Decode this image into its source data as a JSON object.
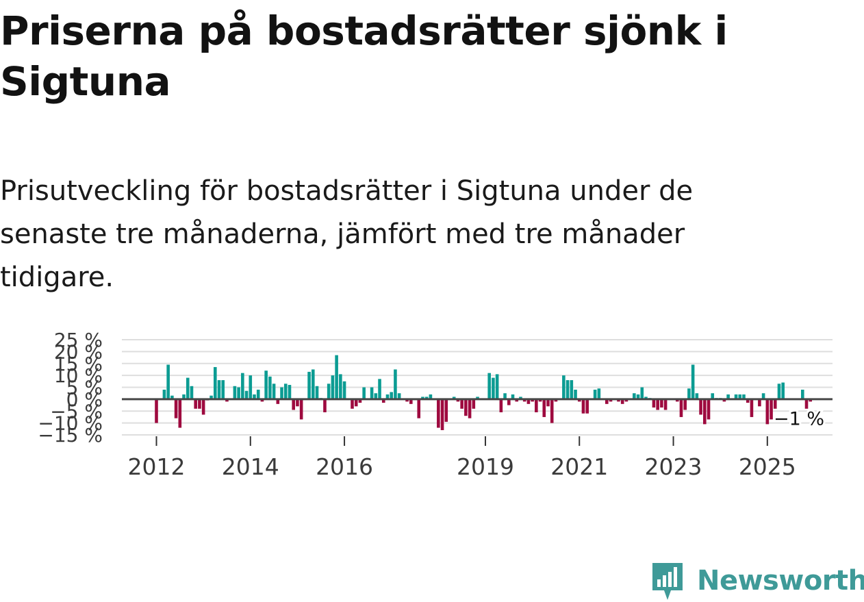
{
  "title": "Priserna på bostadsrätter sjönk i Sigtuna",
  "subtitle": "Prisutveckling för bostadsrätter i Sigtuna under de senaste tre månaderna, jämfört med tre månader tidigare.",
  "logo_text": "Newsworthy",
  "colors": {
    "positive": "#0c9c93",
    "negative": "#9e0a3f",
    "zero_line": "#474747",
    "grid": "#dedede",
    "tick_text": "#3a3a3a"
  },
  "chart_data": {
    "type": "bar",
    "title": "",
    "xlabel": "",
    "ylabel": "",
    "ylim": [
      -15,
      25
    ],
    "yticks": [
      25,
      20,
      15,
      10,
      5,
      0,
      -5,
      -10,
      -15
    ],
    "ytick_labels": [
      "25 %",
      "20 %",
      "15 %",
      "10 %",
      "5 %",
      "0 %",
      "−5 %",
      "−10 %",
      "−15 %"
    ],
    "xticks": [
      {
        "label": "2012",
        "index": 0
      },
      {
        "label": "2014",
        "index": 24
      },
      {
        "label": "2016",
        "index": 48
      },
      {
        "label": "2019",
        "index": 84
      },
      {
        "label": "2021",
        "index": 108
      },
      {
        "label": "2023",
        "index": 132
      },
      {
        "label": "2025",
        "index": 156
      }
    ],
    "last_value_label": "−1 %",
    "series": [
      {
        "name": "Prisutveckling",
        "values": [
          -10,
          0,
          4,
          14.5,
          1.5,
          -8,
          -12,
          2,
          9,
          5.5,
          -4,
          -4,
          -6.5,
          -0.5,
          1.5,
          13.5,
          8,
          8,
          -1,
          0,
          5.5,
          5,
          11,
          3.5,
          10,
          2,
          4,
          -1,
          12,
          9.5,
          6.5,
          -2,
          5,
          6.5,
          6,
          -4.5,
          -3,
          -8.5,
          0,
          11.5,
          12.5,
          5.5,
          0.5,
          -5.5,
          6.5,
          10,
          18.5,
          10.5,
          7.5,
          0,
          -4,
          -3,
          -1.5,
          5,
          0,
          5,
          2.5,
          8.5,
          -1.5,
          2,
          3,
          12.5,
          2.5,
          0,
          -1,
          -2,
          0,
          -8,
          1,
          1,
          2,
          0,
          -12,
          -13,
          -9.5,
          0,
          1,
          -1,
          -4,
          -7,
          -8,
          -4,
          1,
          0,
          0,
          11,
          9,
          10.5,
          -5.5,
          2.5,
          -2.5,
          2,
          -1,
          1,
          -1,
          -2,
          -1,
          -5.5,
          -1,
          -7.5,
          -3,
          -10,
          -1,
          0,
          10,
          8,
          8,
          4,
          -1,
          -6,
          -6,
          0,
          4,
          4.5,
          0,
          -2,
          -1,
          0,
          -1,
          -2,
          -1,
          0,
          2.5,
          2,
          5,
          1,
          0.5,
          -3.5,
          -4.5,
          -3.5,
          -4.5,
          0,
          0,
          -1,
          -7.5,
          -4.5,
          4.5,
          14.5,
          2.5,
          -6.5,
          -10.5,
          -8.5,
          2.5,
          0.5,
          0.5,
          -1,
          2,
          0,
          2,
          2,
          2,
          -1.5,
          -7.5,
          0,
          -3,
          2.5,
          -10.5,
          -8.5,
          -4,
          6.5,
          7,
          0,
          0,
          0,
          0,
          4,
          -4,
          -1
        ]
      }
    ]
  }
}
